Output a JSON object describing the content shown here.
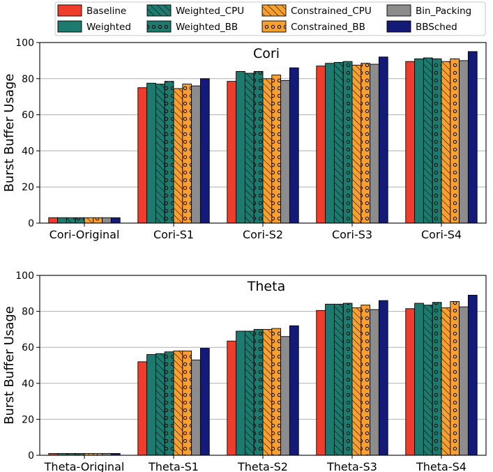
{
  "legend": {
    "entries": [
      "Baseline",
      "Weighted",
      "Weighted_CPU",
      "Weighted_BB",
      "Constrained_CPU",
      "Constrained_BB",
      "Bin_Packing",
      "BBSched"
    ]
  },
  "series_style": [
    {
      "name": "Baseline",
      "color": "#f03c2a",
      "hatch": "none"
    },
    {
      "name": "Weighted",
      "color": "#1d7a6e",
      "hatch": "none"
    },
    {
      "name": "Weighted_CPU",
      "color": "#1d7a6e",
      "hatch": "diagonal"
    },
    {
      "name": "Weighted_BB",
      "color": "#1d7a6e",
      "hatch": "dots"
    },
    {
      "name": "Constrained_CPU",
      "color": "#f7a030",
      "hatch": "diagonal"
    },
    {
      "name": "Constrained_BB",
      "color": "#f7a030",
      "hatch": "dots"
    },
    {
      "name": "Bin_Packing",
      "color": "#8c8c8c",
      "hatch": "none"
    },
    {
      "name": "BBSched",
      "color": "#141a78",
      "hatch": "none"
    }
  ],
  "chart_data": [
    {
      "type": "bar",
      "title": "Cori",
      "ylabel": "Burst Buffer Usage",
      "xlabel": "",
      "ylim": [
        0,
        100
      ],
      "yticks": [
        0,
        20,
        40,
        60,
        80,
        100
      ],
      "grid": "horizontal",
      "categories": [
        "Cori-Original",
        "Cori-S1",
        "Cori-S2",
        "Cori-S3",
        "Cori-S4"
      ],
      "series": [
        {
          "name": "Baseline",
          "values": [
            3,
            75,
            78.5,
            87,
            89.5
          ]
        },
        {
          "name": "Weighted",
          "values": [
            3,
            77.5,
            84,
            88.5,
            91
          ]
        },
        {
          "name": "Weighted_CPU",
          "values": [
            3,
            77,
            83,
            89,
            91.5
          ]
        },
        {
          "name": "Weighted_BB",
          "values": [
            3,
            78.5,
            84,
            89.5,
            91
          ]
        },
        {
          "name": "Constrained_CPU",
          "values": [
            3,
            74.5,
            80,
            87.5,
            89.5
          ]
        },
        {
          "name": "Constrained_BB",
          "values": [
            3,
            77,
            82,
            88.5,
            91
          ]
        },
        {
          "name": "Bin_Packing",
          "values": [
            3,
            76,
            79,
            88,
            90
          ]
        },
        {
          "name": "BBSched",
          "values": [
            3,
            80,
            86,
            92,
            95
          ]
        }
      ]
    },
    {
      "type": "bar",
      "title": "Theta",
      "ylabel": "Burst Buffer Usage",
      "xlabel": "",
      "ylim": [
        0,
        100
      ],
      "yticks": [
        0,
        20,
        40,
        60,
        80,
        100
      ],
      "grid": "horizontal",
      "categories": [
        "Theta-Original",
        "Theta-S1",
        "Theta-S2",
        "Theta-S3",
        "Theta-S4"
      ],
      "series": [
        {
          "name": "Baseline",
          "values": [
            1,
            52,
            63.5,
            80.5,
            81.5
          ]
        },
        {
          "name": "Weighted",
          "values": [
            1,
            56,
            69,
            84,
            84.5
          ]
        },
        {
          "name": "Weighted_CPU",
          "values": [
            1,
            56.5,
            69,
            84,
            83.5
          ]
        },
        {
          "name": "Weighted_BB",
          "values": [
            1,
            57.5,
            70,
            84.5,
            85
          ]
        },
        {
          "name": "Constrained_CPU",
          "values": [
            1,
            58,
            70,
            82,
            82
          ]
        },
        {
          "name": "Constrained_BB",
          "values": [
            1,
            58,
            70.5,
            83.5,
            85.5
          ]
        },
        {
          "name": "Bin_Packing",
          "values": [
            1,
            53,
            66,
            81,
            82.5
          ]
        },
        {
          "name": "BBSched",
          "values": [
            1,
            59.5,
            72,
            86,
            89
          ]
        }
      ]
    }
  ]
}
